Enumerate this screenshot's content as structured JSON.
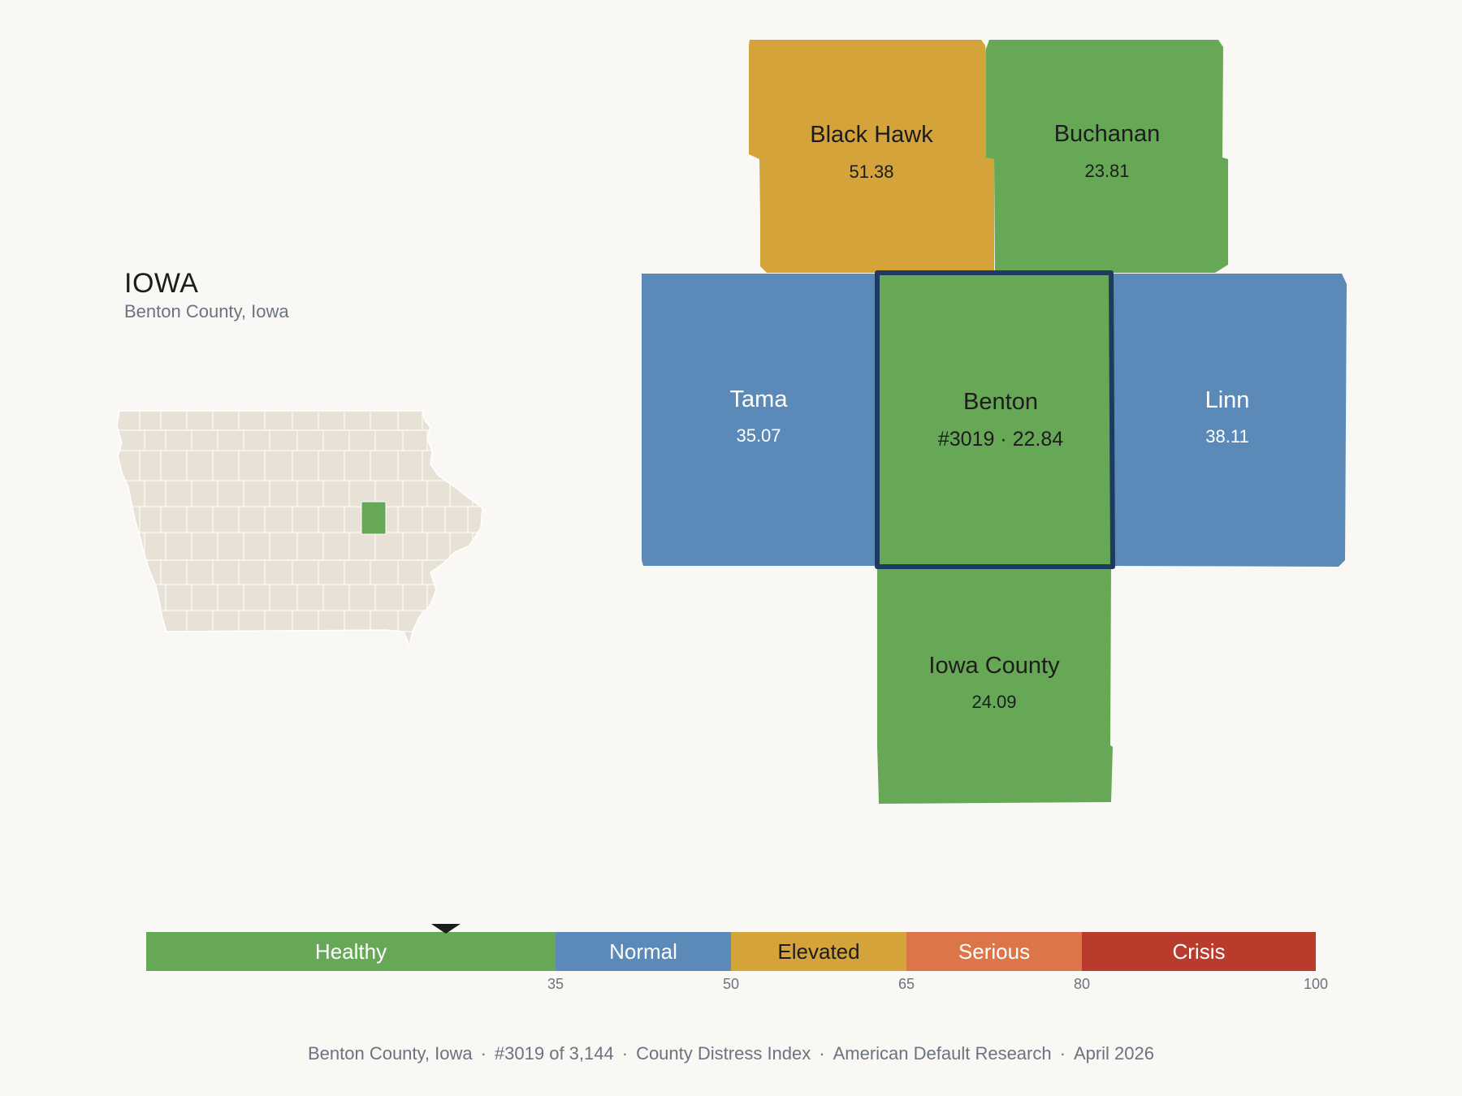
{
  "header": {
    "state": "IOWA",
    "county_full": "Benton County, Iowa"
  },
  "colors": {
    "healthy": "#67a857",
    "normal": "#5b8ab9",
    "elevated": "#d4a43a",
    "serious": "#dc7547",
    "crisis": "#b93b2c",
    "state_fill": "#e8e2d6",
    "focus_outline": "#1f3a5f",
    "background": "#faf8f4"
  },
  "focus_county": {
    "name": "Benton",
    "rank": "#3019",
    "score": "22.84",
    "label": "#3019 · 22.84",
    "category": "healthy"
  },
  "neighbors": [
    {
      "id": "black-hawk",
      "name": "Black Hawk",
      "score": "51.38",
      "category": "elevated"
    },
    {
      "id": "buchanan",
      "name": "Buchanan",
      "score": "23.81",
      "category": "healthy"
    },
    {
      "id": "tama",
      "name": "Tama",
      "score": "35.07",
      "category": "normal"
    },
    {
      "id": "linn",
      "name": "Linn",
      "score": "38.11",
      "category": "normal"
    },
    {
      "id": "iowa-county",
      "name": "Iowa County",
      "score": "24.09",
      "category": "healthy"
    }
  ],
  "scale": {
    "min": 0,
    "max": 100,
    "marker_value": 22.84,
    "bands": [
      {
        "label": "Healthy",
        "from": 0,
        "to": 35,
        "category": "healthy"
      },
      {
        "label": "Normal",
        "from": 35,
        "to": 50,
        "category": "normal"
      },
      {
        "label": "Elevated",
        "from": 50,
        "to": 65,
        "category": "elevated"
      },
      {
        "label": "Serious",
        "from": 65,
        "to": 80,
        "category": "serious"
      },
      {
        "label": "Crisis",
        "from": 80,
        "to": 100,
        "category": "crisis"
      }
    ],
    "ticks": [
      "35",
      "50",
      "65",
      "80",
      "100"
    ]
  },
  "footer": {
    "parts": [
      "Benton County, Iowa",
      "#3019 of 3,144",
      "County Distress Index",
      "American Default Research",
      "April 2026"
    ],
    "separator": "·"
  }
}
